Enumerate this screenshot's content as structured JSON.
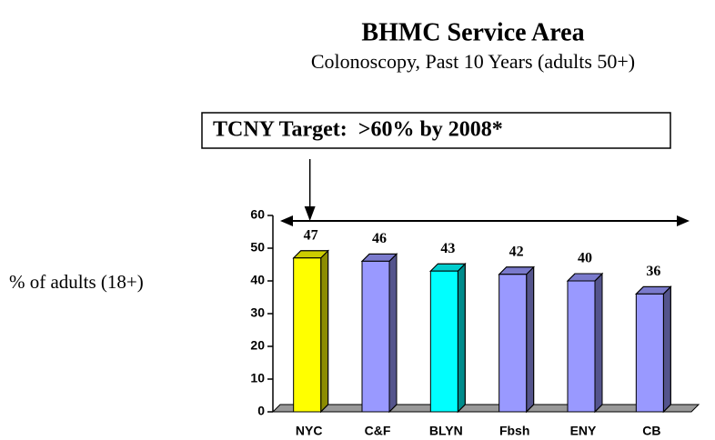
{
  "chart_data": {
    "type": "bar3d",
    "title": "BHMC Service Area",
    "subtitle": "Colonoscopy, Past 10 Years (adults 50+)",
    "y_label": "% of adults (18+)",
    "annotation": "TCNY Target:  >60% by 2008*",
    "target": 60,
    "categories": [
      "NYC",
      "C&F",
      "BLYN",
      "Fbsh",
      "ENY",
      "CB"
    ],
    "values": [
      47,
      46,
      43,
      42,
      40,
      36
    ],
    "colors": [
      "#ffff00",
      "#9999ff",
      "#00ffff",
      "#9999ff",
      "#9999ff",
      "#9999ff"
    ],
    "ylim": [
      0,
      60
    ],
    "yticks": [
      0,
      10,
      20,
      30,
      40,
      50,
      60
    ]
  }
}
